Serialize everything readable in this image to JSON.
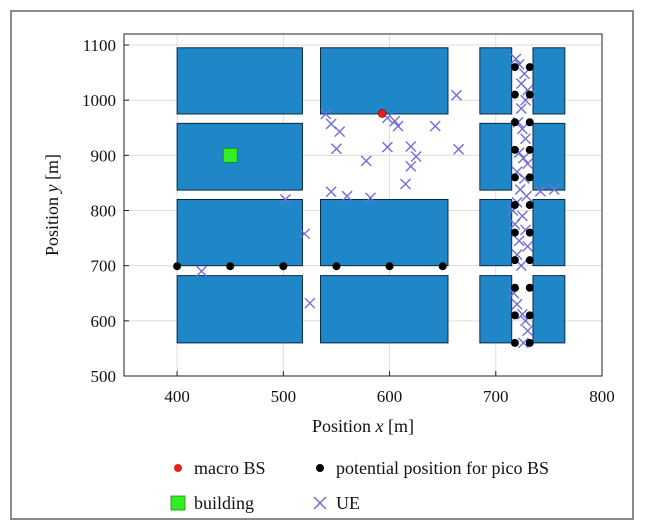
{
  "chart_data": {
    "type": "scatter",
    "title": "",
    "xlabel": "Position x [m]",
    "xlabel_parts": [
      "Position ",
      "x",
      " [m]"
    ],
    "ylabel": "Position y [m]",
    "ylabel_parts": [
      "Position ",
      "y",
      " [m]"
    ],
    "xlim": [
      350,
      800
    ],
    "ylim": [
      500,
      1120
    ],
    "xticks": [
      400,
      500,
      600,
      700,
      800
    ],
    "yticks": [
      500,
      600,
      700,
      800,
      900,
      1000,
      1100
    ],
    "grid": true,
    "legend_position": "bottom",
    "colors": {
      "block_fill": "#1f87c8",
      "block_stroke": "#0a2a45",
      "macro": "#e8201a",
      "pico": "#000000",
      "building": "#33ee22",
      "ue": "#6f6fd8"
    },
    "legend": [
      {
        "key": "macro",
        "label": "macro BS"
      },
      {
        "key": "pico",
        "label": "potential position for pico BS"
      },
      {
        "key": "building",
        "label": "building"
      },
      {
        "key": "ue",
        "label": "UE"
      }
    ],
    "blocks": [
      {
        "x0": 400,
        "x1": 518,
        "y0": 975,
        "y1": 1095
      },
      {
        "x0": 400,
        "x1": 518,
        "y0": 837,
        "y1": 958
      },
      {
        "x0": 400,
        "x1": 518,
        "y0": 700,
        "y1": 820
      },
      {
        "x0": 400,
        "x1": 518,
        "y0": 560,
        "y1": 682
      },
      {
        "x0": 535,
        "x1": 655,
        "y0": 975,
        "y1": 1095
      },
      {
        "x0": 535,
        "x1": 655,
        "y0": 700,
        "y1": 820
      },
      {
        "x0": 535,
        "x1": 655,
        "y0": 560,
        "y1": 682
      },
      {
        "x0": 685,
        "x1": 715,
        "y0": 975,
        "y1": 1095
      },
      {
        "x0": 685,
        "x1": 715,
        "y0": 837,
        "y1": 958
      },
      {
        "x0": 685,
        "x1": 715,
        "y0": 700,
        "y1": 820
      },
      {
        "x0": 685,
        "x1": 715,
        "y0": 560,
        "y1": 682
      },
      {
        "x0": 735,
        "x1": 765,
        "y0": 975,
        "y1": 1095
      },
      {
        "x0": 735,
        "x1": 765,
        "y0": 837,
        "y1": 958
      },
      {
        "x0": 735,
        "x1": 765,
        "y0": 700,
        "y1": 820
      },
      {
        "x0": 735,
        "x1": 765,
        "y0": 560,
        "y1": 682
      }
    ],
    "building": {
      "x": 450,
      "y": 900
    },
    "macro_bs": [
      {
        "x": 593,
        "y": 976
      }
    ],
    "pico_bs": [
      {
        "x": 400,
        "y": 699
      },
      {
        "x": 450,
        "y": 699
      },
      {
        "x": 500,
        "y": 699
      },
      {
        "x": 550,
        "y": 699
      },
      {
        "x": 600,
        "y": 699
      },
      {
        "x": 650,
        "y": 699
      },
      {
        "x": 718,
        "y": 1060
      },
      {
        "x": 718,
        "y": 1010
      },
      {
        "x": 718,
        "y": 960
      },
      {
        "x": 718,
        "y": 910
      },
      {
        "x": 718,
        "y": 860
      },
      {
        "x": 718,
        "y": 810
      },
      {
        "x": 718,
        "y": 760
      },
      {
        "x": 718,
        "y": 710
      },
      {
        "x": 718,
        "y": 660
      },
      {
        "x": 718,
        "y": 610
      },
      {
        "x": 718,
        "y": 560
      },
      {
        "x": 732,
        "y": 1060
      },
      {
        "x": 732,
        "y": 1010
      },
      {
        "x": 732,
        "y": 960
      },
      {
        "x": 732,
        "y": 910
      },
      {
        "x": 732,
        "y": 860
      },
      {
        "x": 732,
        "y": 810
      },
      {
        "x": 732,
        "y": 760
      },
      {
        "x": 732,
        "y": 710
      },
      {
        "x": 732,
        "y": 660
      },
      {
        "x": 732,
        "y": 610
      },
      {
        "x": 732,
        "y": 560
      }
    ],
    "ue": [
      {
        "x": 540,
        "y": 975
      },
      {
        "x": 545,
        "y": 957
      },
      {
        "x": 553,
        "y": 943
      },
      {
        "x": 550,
        "y": 912
      },
      {
        "x": 598,
        "y": 968
      },
      {
        "x": 605,
        "y": 962
      },
      {
        "x": 608,
        "y": 953
      },
      {
        "x": 598,
        "y": 915
      },
      {
        "x": 620,
        "y": 916
      },
      {
        "x": 625,
        "y": 898
      },
      {
        "x": 620,
        "y": 880
      },
      {
        "x": 615,
        "y": 848
      },
      {
        "x": 643,
        "y": 953
      },
      {
        "x": 663,
        "y": 1009
      },
      {
        "x": 665,
        "y": 911
      },
      {
        "x": 578,
        "y": 890
      },
      {
        "x": 545,
        "y": 834
      },
      {
        "x": 560,
        "y": 826
      },
      {
        "x": 582,
        "y": 823
      },
      {
        "x": 502,
        "y": 820
      },
      {
        "x": 520,
        "y": 758
      },
      {
        "x": 423,
        "y": 690
      },
      {
        "x": 525,
        "y": 632
      },
      {
        "x": 719,
        "y": 1075
      },
      {
        "x": 722,
        "y": 1065
      },
      {
        "x": 727,
        "y": 1048
      },
      {
        "x": 724,
        "y": 1030
      },
      {
        "x": 730,
        "y": 1018
      },
      {
        "x": 733,
        "y": 1010
      },
      {
        "x": 728,
        "y": 1000
      },
      {
        "x": 724,
        "y": 985
      },
      {
        "x": 721,
        "y": 960
      },
      {
        "x": 725,
        "y": 948
      },
      {
        "x": 728,
        "y": 930
      },
      {
        "x": 722,
        "y": 905
      },
      {
        "x": 726,
        "y": 895
      },
      {
        "x": 730,
        "y": 885
      },
      {
        "x": 720,
        "y": 870
      },
      {
        "x": 727,
        "y": 858
      },
      {
        "x": 723,
        "y": 838
      },
      {
        "x": 729,
        "y": 826
      },
      {
        "x": 720,
        "y": 815
      },
      {
        "x": 716,
        "y": 800
      },
      {
        "x": 725,
        "y": 790
      },
      {
        "x": 718,
        "y": 775
      },
      {
        "x": 728,
        "y": 765
      },
      {
        "x": 722,
        "y": 745
      },
      {
        "x": 730,
        "y": 735
      },
      {
        "x": 720,
        "y": 720
      },
      {
        "x": 724,
        "y": 700
      },
      {
        "x": 717,
        "y": 650
      },
      {
        "x": 720,
        "y": 630
      },
      {
        "x": 725,
        "y": 612
      },
      {
        "x": 728,
        "y": 600
      },
      {
        "x": 730,
        "y": 582
      },
      {
        "x": 726,
        "y": 560
      },
      {
        "x": 742,
        "y": 835
      },
      {
        "x": 755,
        "y": 838
      }
    ]
  }
}
